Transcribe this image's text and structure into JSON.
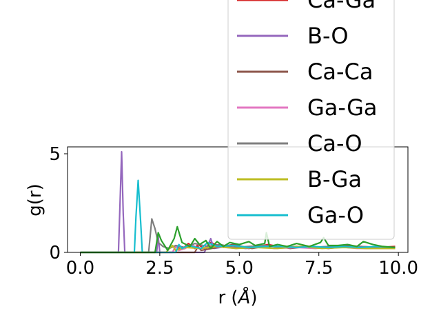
{
  "chart_data": {
    "type": "line",
    "xlabel": "r (Å)",
    "xlabel_prefix": "r (",
    "xlabel_unit": "Å",
    "xlabel_suffix": ")",
    "ylabel": "g(r)",
    "xlim": [
      -0.4,
      10.3
    ],
    "ylim": [
      0,
      5.35
    ],
    "xticks": [
      "0.0",
      "2.5",
      "5.0",
      "7.5",
      "10.0"
    ],
    "xtick_values": [
      0,
      2.5,
      5.0,
      7.5,
      10.0
    ],
    "yticks": [
      "0",
      "5"
    ],
    "ytick_values": [
      0,
      5
    ],
    "grid": false,
    "legend_position": "right, overflowing above plot",
    "series": [
      {
        "name": "Ca-Ga",
        "color": "#d62728",
        "x": [
          0,
          2.9,
          3.0,
          3.2,
          3.4,
          3.6,
          3.7,
          3.9,
          4.1,
          4.4,
          4.8,
          5.3,
          5.9,
          6.4,
          7.0,
          7.6,
          8.2,
          8.8,
          9.4,
          9.9
        ],
        "y": [
          0,
          0,
          0.3,
          0.15,
          0.45,
          0.2,
          0.4,
          0.2,
          0.5,
          0.3,
          0.35,
          0.2,
          0.4,
          0.25,
          0.3,
          0.25,
          0.35,
          0.3,
          0.25,
          0.3
        ]
      },
      {
        "name": "B-O",
        "color": "#9467bd",
        "x": [
          0,
          1.2,
          1.25,
          1.3,
          1.35,
          1.4,
          2.4,
          2.45,
          2.5,
          2.7,
          2.8,
          3.9,
          4.0,
          4.1,
          4.2,
          4.6,
          5.2,
          6.0,
          7.0,
          8.0,
          9.0,
          9.9
        ],
        "y": [
          0,
          0,
          2.5,
          5.1,
          2.0,
          0,
          0,
          0.8,
          0,
          0,
          0,
          0,
          0.3,
          0.7,
          0.2,
          0.3,
          0.2,
          0.3,
          0.25,
          0.3,
          0.2,
          0.25
        ]
      },
      {
        "name": "Ca-Ca",
        "color": "#8c564b",
        "x": [
          0,
          3.6,
          3.7,
          3.8,
          4.3,
          4.8,
          5.4,
          6.0,
          6.6,
          7.2,
          7.8,
          8.4,
          9.0,
          9.6,
          9.9
        ],
        "y": [
          0,
          0,
          0.3,
          0.1,
          0.25,
          0.4,
          0.2,
          0.35,
          0.2,
          0.3,
          0.2,
          0.3,
          0.2,
          0.25,
          0.2
        ]
      },
      {
        "name": "Ga-Ga",
        "color": "#e377c2",
        "x": [
          0,
          2.9,
          3.0,
          3.1,
          3.3,
          3.5,
          3.7,
          4.2,
          4.9,
          5.5,
          6.1,
          6.8,
          7.4,
          8.0,
          8.7,
          9.3,
          9.9
        ],
        "y": [
          0,
          0,
          0.35,
          0.1,
          0.2,
          0.4,
          0.2,
          0.3,
          0.2,
          0.3,
          0.2,
          0.25,
          0.2,
          0.3,
          0.2,
          0.2,
          0.2
        ]
      },
      {
        "name": "Ca-O",
        "color": "#7f7f7f",
        "x": [
          0,
          2.15,
          2.25,
          2.35,
          2.45,
          2.6,
          2.8,
          3.0,
          3.3,
          3.6,
          4.0,
          4.4,
          4.8,
          5.3,
          5.8,
          6.3,
          6.8,
          7.3,
          7.8,
          8.3,
          8.8,
          9.3,
          9.9
        ],
        "y": [
          0,
          0,
          1.7,
          1.2,
          0.5,
          0.3,
          0.2,
          0.35,
          0.25,
          0.45,
          0.3,
          0.4,
          0.25,
          0.3,
          0.35,
          0.25,
          0.3,
          0.25,
          0.3,
          0.25,
          0.3,
          0.25,
          0.25
        ]
      },
      {
        "name": "B-Ga",
        "color": "#bcbd22",
        "x": [
          0,
          2.7,
          2.8,
          2.9,
          3.0,
          3.3,
          3.8,
          4.3,
          4.9,
          5.5,
          6.2,
          6.9,
          7.6,
          8.3,
          9.0,
          9.6,
          9.9
        ],
        "y": [
          0,
          0,
          0.2,
          0.35,
          0.1,
          0.25,
          0.2,
          0.3,
          0.2,
          0.25,
          0.2,
          0.3,
          0.2,
          0.25,
          0.2,
          0.2,
          0.2
        ]
      },
      {
        "name": "Ga-O",
        "color": "#17becf",
        "x": [
          0,
          1.7,
          1.75,
          1.82,
          1.9,
          1.95,
          3.0,
          3.1,
          3.2,
          3.4,
          3.8,
          4.0,
          4.3,
          4.8,
          5.3,
          5.8,
          6.3,
          6.8,
          7.3,
          7.8,
          8.3,
          8.8,
          9.3,
          9.9
        ],
        "y": [
          0,
          0,
          1.8,
          3.65,
          1.5,
          0,
          0,
          0.4,
          0.2,
          0.35,
          0.2,
          0.5,
          0.3,
          0.35,
          0.25,
          0.3,
          0.3,
          0.25,
          0.3,
          0.25,
          0.3,
          0.25,
          0.3,
          0.25
        ]
      },
      {
        "name": "",
        "color": "#2ca02c",
        "x": [
          0,
          2.35,
          2.45,
          2.55,
          2.75,
          2.95,
          3.05,
          3.2,
          3.45,
          3.6,
          3.75,
          3.95,
          4.1,
          4.3,
          4.5,
          4.7,
          5.0,
          5.3,
          5.5,
          5.8,
          5.85,
          5.95,
          6.2,
          6.5,
          6.8,
          7.2,
          7.55,
          7.65,
          7.8,
          8.1,
          8.4,
          8.7,
          8.9,
          9.2,
          9.5,
          9.9
        ],
        "y": [
          0,
          0,
          1.0,
          0.6,
          0.1,
          0.7,
          1.3,
          0.5,
          0.3,
          0.7,
          0.4,
          0.6,
          0.2,
          0.55,
          0.3,
          0.5,
          0.4,
          0.55,
          0.35,
          0.45,
          1.0,
          0.3,
          0.4,
          0.3,
          0.45,
          0.3,
          0.5,
          0.75,
          0.35,
          0.35,
          0.4,
          0.3,
          0.55,
          0.4,
          0.3,
          0.25
        ]
      }
    ]
  }
}
